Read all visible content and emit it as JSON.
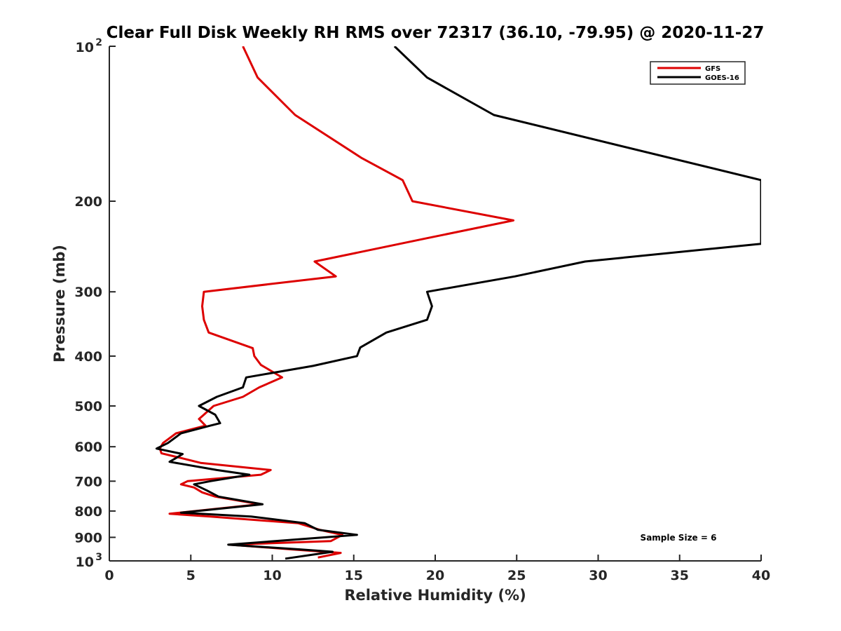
{
  "chart_data": {
    "type": "line",
    "title": "Clear Full Disk Weekly RH RMS over 72317 (36.10, -79.95) @ 2020-11-27",
    "xlabel": "Relative Humidity (%)",
    "ylabel": "Pressure (mb)",
    "xlim": [
      0,
      40
    ],
    "ylim": [
      100,
      1000
    ],
    "y_scale": "log",
    "y_reversed": true,
    "x_ticks": [
      "0",
      "5",
      "10",
      "15",
      "20",
      "25",
      "30",
      "35",
      "40"
    ],
    "y_ticks": [
      {
        "value": 100,
        "base": "10",
        "exp": "2"
      },
      {
        "value": 200,
        "label": "200"
      },
      {
        "value": 300,
        "label": "300"
      },
      {
        "value": 400,
        "label": "400"
      },
      {
        "value": 500,
        "label": "500"
      },
      {
        "value": 600,
        "label": "600"
      },
      {
        "value": 700,
        "label": "700"
      },
      {
        "value": 800,
        "label": "800"
      },
      {
        "value": 900,
        "label": "900"
      },
      {
        "value": 1000,
        "base": "10",
        "exp": "3"
      }
    ],
    "grid": false,
    "legend_position": "top-right",
    "annotation": "Sample Size = 6",
    "series": [
      {
        "name": "GFS",
        "color": "#dd0000",
        "points": [
          [
            8.2,
            100
          ],
          [
            9.1,
            115
          ],
          [
            11.4,
            136
          ],
          [
            15.5,
            165
          ],
          [
            18.0,
            182
          ],
          [
            18.6,
            200
          ],
          [
            24.8,
            218
          ],
          [
            19.5,
            236
          ],
          [
            12.6,
            262
          ],
          [
            13.9,
            280
          ],
          [
            5.8,
            300
          ],
          [
            5.7,
            320
          ],
          [
            5.8,
            340
          ],
          [
            6.1,
            360
          ],
          [
            8.8,
            386
          ],
          [
            8.9,
            400
          ],
          [
            9.3,
            416
          ],
          [
            10.6,
            440
          ],
          [
            9.2,
            460
          ],
          [
            8.2,
            480
          ],
          [
            6.4,
            500
          ],
          [
            5.8,
            520
          ],
          [
            5.5,
            530
          ],
          [
            5.9,
            546
          ],
          [
            4.1,
            565
          ],
          [
            3.3,
            590
          ],
          [
            3.1,
            605
          ],
          [
            3.2,
            618
          ],
          [
            4.3,
            630
          ],
          [
            5.6,
            645
          ],
          [
            9.9,
            666
          ],
          [
            9.3,
            680
          ],
          [
            4.8,
            700
          ],
          [
            4.4,
            710
          ],
          [
            5.2,
            720
          ],
          [
            5.7,
            736
          ],
          [
            6.5,
            750
          ],
          [
            9.2,
            776
          ],
          [
            3.7,
            810
          ],
          [
            6.2,
            820
          ],
          [
            11.6,
            845
          ],
          [
            12.9,
            870
          ],
          [
            14.3,
            890
          ],
          [
            13.6,
            915
          ],
          [
            7.4,
            930
          ],
          [
            11.2,
            950
          ],
          [
            14.2,
            965
          ],
          [
            12.8,
            985
          ]
        ]
      },
      {
        "name": "GOES-16",
        "color": "#000000",
        "points": [
          [
            17.5,
            100
          ],
          [
            19.5,
            115
          ],
          [
            23.6,
            136
          ],
          [
            40.0,
            182
          ],
          [
            40.0,
            242
          ],
          [
            29.2,
            262
          ],
          [
            24.9,
            280
          ],
          [
            19.5,
            300
          ],
          [
            19.8,
            320
          ],
          [
            19.5,
            340
          ],
          [
            17.0,
            360
          ],
          [
            15.4,
            385
          ],
          [
            15.2,
            400
          ],
          [
            12.5,
            418
          ],
          [
            8.4,
            440
          ],
          [
            8.2,
            460
          ],
          [
            6.6,
            480
          ],
          [
            5.5,
            500
          ],
          [
            6.5,
            520
          ],
          [
            6.8,
            540
          ],
          [
            6.2,
            546
          ],
          [
            4.4,
            565
          ],
          [
            3.6,
            590
          ],
          [
            2.9,
            605
          ],
          [
            4.5,
            620
          ],
          [
            3.7,
            642
          ],
          [
            6.6,
            666
          ],
          [
            8.6,
            680
          ],
          [
            6.2,
            700
          ],
          [
            5.2,
            710
          ],
          [
            6.0,
            730
          ],
          [
            6.7,
            750
          ],
          [
            9.4,
            776
          ],
          [
            4.4,
            806
          ],
          [
            8.7,
            820
          ],
          [
            12.0,
            845
          ],
          [
            12.8,
            870
          ],
          [
            15.2,
            890
          ],
          [
            7.3,
            930
          ],
          [
            11.7,
            950
          ],
          [
            13.7,
            960
          ],
          [
            10.8,
            990
          ]
        ]
      }
    ]
  }
}
